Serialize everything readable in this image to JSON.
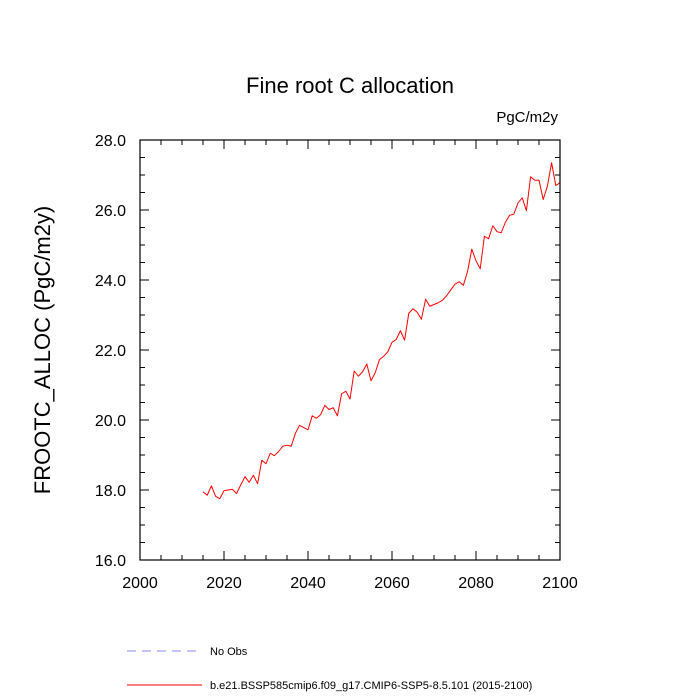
{
  "chart_data": {
    "type": "line",
    "title": "Fine root C allocation",
    "units_label": "PgC/m2y",
    "ylabel": "FROOTC_ALLOC  (PgC/m2y)",
    "xlabel": "",
    "xlim": [
      2000,
      2100
    ],
    "ylim": [
      16.0,
      28.0
    ],
    "x_ticks": [
      2000,
      2020,
      2040,
      2060,
      2080,
      2100
    ],
    "x_tick_labels": [
      "2000",
      "2020",
      "2040",
      "2060",
      "2080",
      "2100"
    ],
    "y_ticks": [
      16,
      18,
      20,
      22,
      24,
      26,
      28
    ],
    "y_tick_labels": [
      "16.0",
      "18.0",
      "20.0",
      "22.0",
      "24.0",
      "26.0",
      "28.0"
    ],
    "grid": false,
    "legend_position": "bottom",
    "series": [
      {
        "name": "b.e21.BSSP585cmip6.f09_g17.CMIP6-SSP5-8.5.101 (2015-2100)",
        "color": "#ff0000",
        "style": "solid",
        "x": [
          2015,
          2016,
          2017,
          2018,
          2019,
          2020,
          2021,
          2022,
          2023,
          2024,
          2025,
          2026,
          2027,
          2028,
          2029,
          2030,
          2031,
          2032,
          2033,
          2034,
          2035,
          2036,
          2037,
          2038,
          2039,
          2040,
          2041,
          2042,
          2043,
          2044,
          2045,
          2046,
          2047,
          2048,
          2049,
          2050,
          2051,
          2052,
          2053,
          2054,
          2055,
          2056,
          2057,
          2058,
          2059,
          2060,
          2061,
          2062,
          2063,
          2064,
          2065,
          2066,
          2067,
          2068,
          2069,
          2070,
          2071,
          2072,
          2073,
          2074,
          2075,
          2076,
          2077,
          2078,
          2079,
          2080,
          2081,
          2082,
          2083,
          2084,
          2085,
          2086,
          2087,
          2088,
          2089,
          2090,
          2091,
          2092,
          2093,
          2094,
          2095,
          2096,
          2097,
          2098,
          2099,
          2100
        ],
        "values": [
          17.95,
          17.85,
          18.12,
          17.82,
          17.75,
          17.98,
          18.0,
          18.02,
          17.9,
          18.15,
          18.38,
          18.22,
          18.42,
          18.18,
          18.85,
          18.75,
          19.05,
          18.98,
          19.1,
          19.25,
          19.28,
          19.25,
          19.62,
          19.85,
          19.78,
          19.72,
          20.12,
          20.05,
          20.15,
          20.42,
          20.3,
          20.35,
          20.12,
          20.75,
          20.82,
          20.6,
          21.4,
          21.25,
          21.38,
          21.6,
          21.12,
          21.35,
          21.72,
          21.82,
          21.95,
          22.22,
          22.3,
          22.55,
          22.28,
          23.05,
          23.18,
          23.08,
          22.88,
          23.45,
          23.25,
          23.3,
          23.35,
          23.42,
          23.55,
          23.72,
          23.88,
          23.95,
          23.85,
          24.25,
          24.88,
          24.55,
          24.32,
          25.25,
          25.18,
          25.55,
          25.38,
          25.35,
          25.65,
          25.85,
          25.88,
          26.2,
          26.35,
          25.98,
          26.95,
          26.85,
          26.85,
          26.3,
          26.68,
          27.35,
          26.7,
          26.78
        ]
      }
    ],
    "legend": [
      {
        "label": "No Obs",
        "color": "#8888ee",
        "style": "dashed"
      },
      {
        "label": "b.e21.BSSP585cmip6.f09_g17.CMIP6-SSP5-8.5.101 (2015-2100)",
        "color": "#ff0000",
        "style": "solid"
      }
    ]
  }
}
